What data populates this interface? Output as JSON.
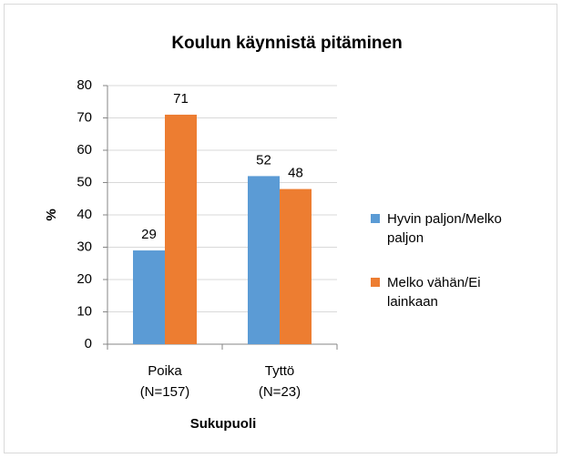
{
  "chart_data": {
    "type": "bar",
    "title": "Koulun käynnistä pitäminen",
    "x_label": "Sukupuoli",
    "y_label": "%",
    "categories": [
      [
        "Poika",
        "(N=157)"
      ],
      [
        "Tyttö",
        "(N=23)"
      ]
    ],
    "series": [
      {
        "name": "Hyvin paljon/Melko paljon",
        "color": "#5b9bd5",
        "values": [
          29,
          52
        ]
      },
      {
        "name": "Melko vähän/Ei lainkaan",
        "color": "#ed7d31",
        "values": [
          71,
          48
        ]
      }
    ],
    "ylim": [
      0,
      80
    ],
    "yticks": [
      0,
      10,
      20,
      30,
      40,
      50,
      60,
      70,
      80
    ],
    "grid": true,
    "legend": "right"
  }
}
